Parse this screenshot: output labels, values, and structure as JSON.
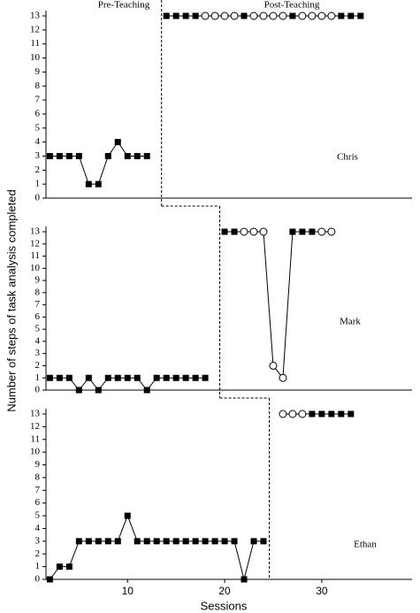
{
  "chart_data": [
    {
      "type": "line",
      "annotations": [
        "Pre-Teaching",
        "Post-Teaching"
      ],
      "label": "Chris",
      "xlim": [
        1.6,
        39.3
      ],
      "ylim": [
        0,
        13
      ],
      "yticks": [
        0,
        1,
        2,
        3,
        4,
        5,
        6,
        7,
        8,
        9,
        10,
        11,
        12,
        13
      ],
      "phase_change": 13.5,
      "series": [
        {
          "x": [
            2,
            3,
            4,
            5,
            6,
            7,
            8,
            9,
            10,
            11,
            12
          ],
          "values": [
            3,
            3,
            3,
            3,
            1,
            1,
            3,
            4,
            3,
            3,
            3
          ],
          "markers": [
            "square",
            "square",
            "square",
            "square",
            "square",
            "square",
            "square",
            "square",
            "square",
            "square",
            "square"
          ]
        },
        {
          "x": [
            14,
            15,
            16,
            17,
            18,
            19,
            20,
            21,
            22,
            23,
            24,
            25,
            26,
            27,
            28,
            29,
            30,
            31,
            32,
            33,
            34
          ],
          "values": [
            13,
            13,
            13,
            13,
            13,
            13,
            13,
            13,
            13,
            13,
            13,
            13,
            13,
            13,
            13,
            13,
            13,
            13,
            13,
            13,
            13
          ],
          "markers": [
            "square",
            "square",
            "square",
            "square",
            "circle",
            "circle",
            "circle",
            "circle",
            "square",
            "circle",
            "circle",
            "circle",
            "circle",
            "square",
            "circle",
            "circle",
            "circle",
            "circle",
            "square",
            "square",
            "square"
          ]
        }
      ]
    },
    {
      "type": "line",
      "label": "Mark",
      "ylabel": "Number of steps of  task analysis completed",
      "xlim": [
        1.6,
        39.3
      ],
      "ylim": [
        0,
        13
      ],
      "yticks": [
        0,
        1,
        2,
        3,
        4,
        5,
        6,
        7,
        8,
        9,
        10,
        11,
        12,
        13
      ],
      "phase_change": 19.5,
      "series": [
        {
          "x": [
            2,
            3,
            4,
            5,
            6,
            7,
            8,
            9,
            10,
            11,
            12,
            13,
            14,
            15,
            16,
            17,
            18
          ],
          "values": [
            1,
            1,
            1,
            0,
            1,
            0,
            1,
            1,
            1,
            1,
            0,
            1,
            1,
            1,
            1,
            1,
            1
          ],
          "markers": [
            "square",
            "square",
            "square",
            "square",
            "square",
            "square",
            "square",
            "square",
            "square",
            "square",
            "square",
            "square",
            "square",
            "square",
            "square",
            "square",
            "square"
          ]
        },
        {
          "x": [
            20,
            21,
            22,
            23,
            24,
            25,
            26,
            27,
            28,
            29,
            30,
            31
          ],
          "values": [
            13,
            13,
            13,
            13,
            13,
            2,
            1,
            13,
            13,
            13,
            13,
            13
          ],
          "markers": [
            "square",
            "square",
            "circle",
            "circle",
            "circle",
            "circle",
            "circle",
            "square",
            "square",
            "square",
            "circle",
            "circle"
          ]
        }
      ]
    },
    {
      "type": "line",
      "label": "Ethan",
      "xlabel": "Sessions",
      "xlim": [
        1.6,
        39.3
      ],
      "ylim": [
        0,
        13
      ],
      "yticks": [
        0,
        1,
        2,
        3,
        4,
        5,
        6,
        7,
        8,
        9,
        10,
        11,
        12,
        13
      ],
      "xticks": [
        10,
        20,
        30
      ],
      "phase_change": 24.6,
      "series": [
        {
          "x": [
            2,
            3,
            4,
            5,
            6,
            7,
            8,
            9,
            10,
            11,
            12,
            13,
            14,
            15,
            16,
            17,
            18,
            19,
            20,
            21,
            22,
            23,
            24
          ],
          "values": [
            0,
            1,
            1,
            3,
            3,
            3,
            3,
            3,
            5,
            3,
            3,
            3,
            3,
            3,
            3,
            3,
            3,
            3,
            3,
            3,
            0,
            3,
            3
          ],
          "markers": [
            "square",
            "square",
            "square",
            "square",
            "square",
            "square",
            "square",
            "square",
            "square",
            "square",
            "square",
            "square",
            "square",
            "square",
            "square",
            "square",
            "square",
            "square",
            "square",
            "square",
            "square",
            "square",
            "square"
          ]
        },
        {
          "x": [
            26,
            27,
            28,
            29,
            30,
            31,
            32,
            33
          ],
          "values": [
            13,
            13,
            13,
            13,
            13,
            13,
            13,
            13
          ],
          "markers": [
            "circle",
            "circle",
            "circle",
            "square",
            "square",
            "square",
            "square",
            "square"
          ]
        }
      ]
    }
  ]
}
